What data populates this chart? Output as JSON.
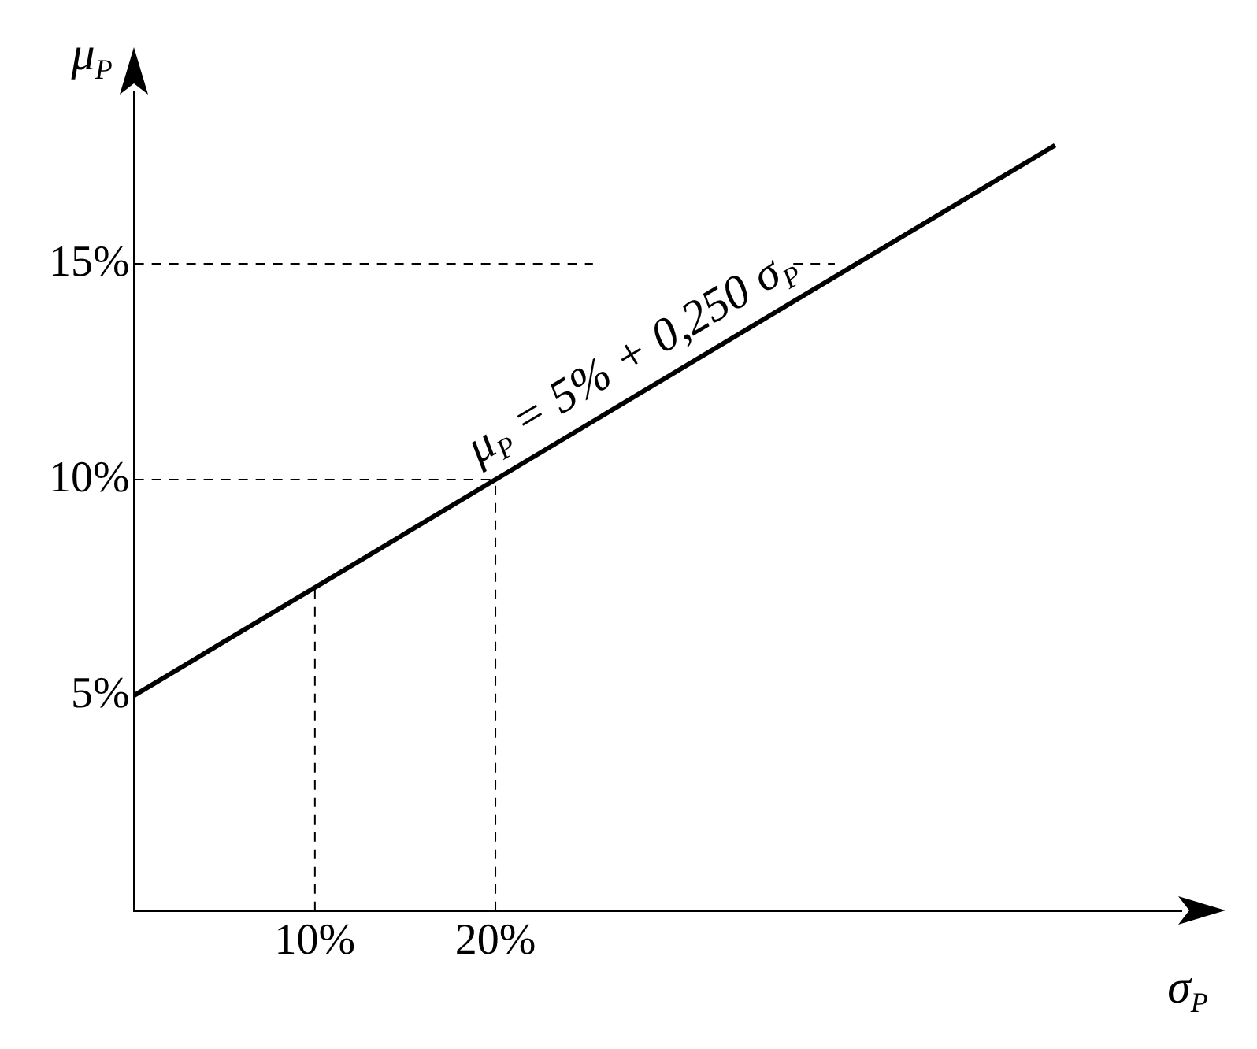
{
  "chart_data": {
    "type": "line",
    "xlabel": "σ$_{P}$",
    "ylabel": "μ$_{P}$",
    "xlim": [
      0,
      58
    ],
    "ylim": [
      0,
      19
    ],
    "xticks": [
      {
        "value": 10,
        "label": "10%"
      },
      {
        "value": 20,
        "label": "20%"
      }
    ],
    "yticks": [
      {
        "value": 5,
        "label": "5%"
      },
      {
        "value": 10,
        "label": "10%"
      },
      {
        "value": 15,
        "label": "15%"
      }
    ],
    "grid": false,
    "legend": false,
    "marker": "none",
    "series": [
      {
        "color": "#000000",
        "x": [
          0,
          51
        ],
        "values": [
          5,
          17.75
        ],
        "line_style": "solid"
      },
      {
        "color": "#000000",
        "x": [
          10,
          10
        ],
        "values": [
          0,
          7.5
        ],
        "line_style": "dashed"
      },
      {
        "color": "#000000",
        "x": [
          20,
          20
        ],
        "values": [
          0,
          10
        ],
        "line_style": "dashed"
      },
      {
        "color": "#000000",
        "x": [
          0,
          20
        ],
        "values": [
          10,
          10
        ],
        "line_style": "dashed"
      },
      {
        "color": "#000000",
        "x": [
          0,
          25.4
        ],
        "values": [
          15,
          15
        ],
        "line_style": "dashed"
      },
      {
        "color": "#000000",
        "x": [
          36.5,
          38.8
        ],
        "values": [
          15,
          15
        ],
        "line_style": "dashed"
      }
    ],
    "annotations": [
      "μ$_{P}$ = 5% + 0,250 σ$_{P}$"
    ]
  }
}
